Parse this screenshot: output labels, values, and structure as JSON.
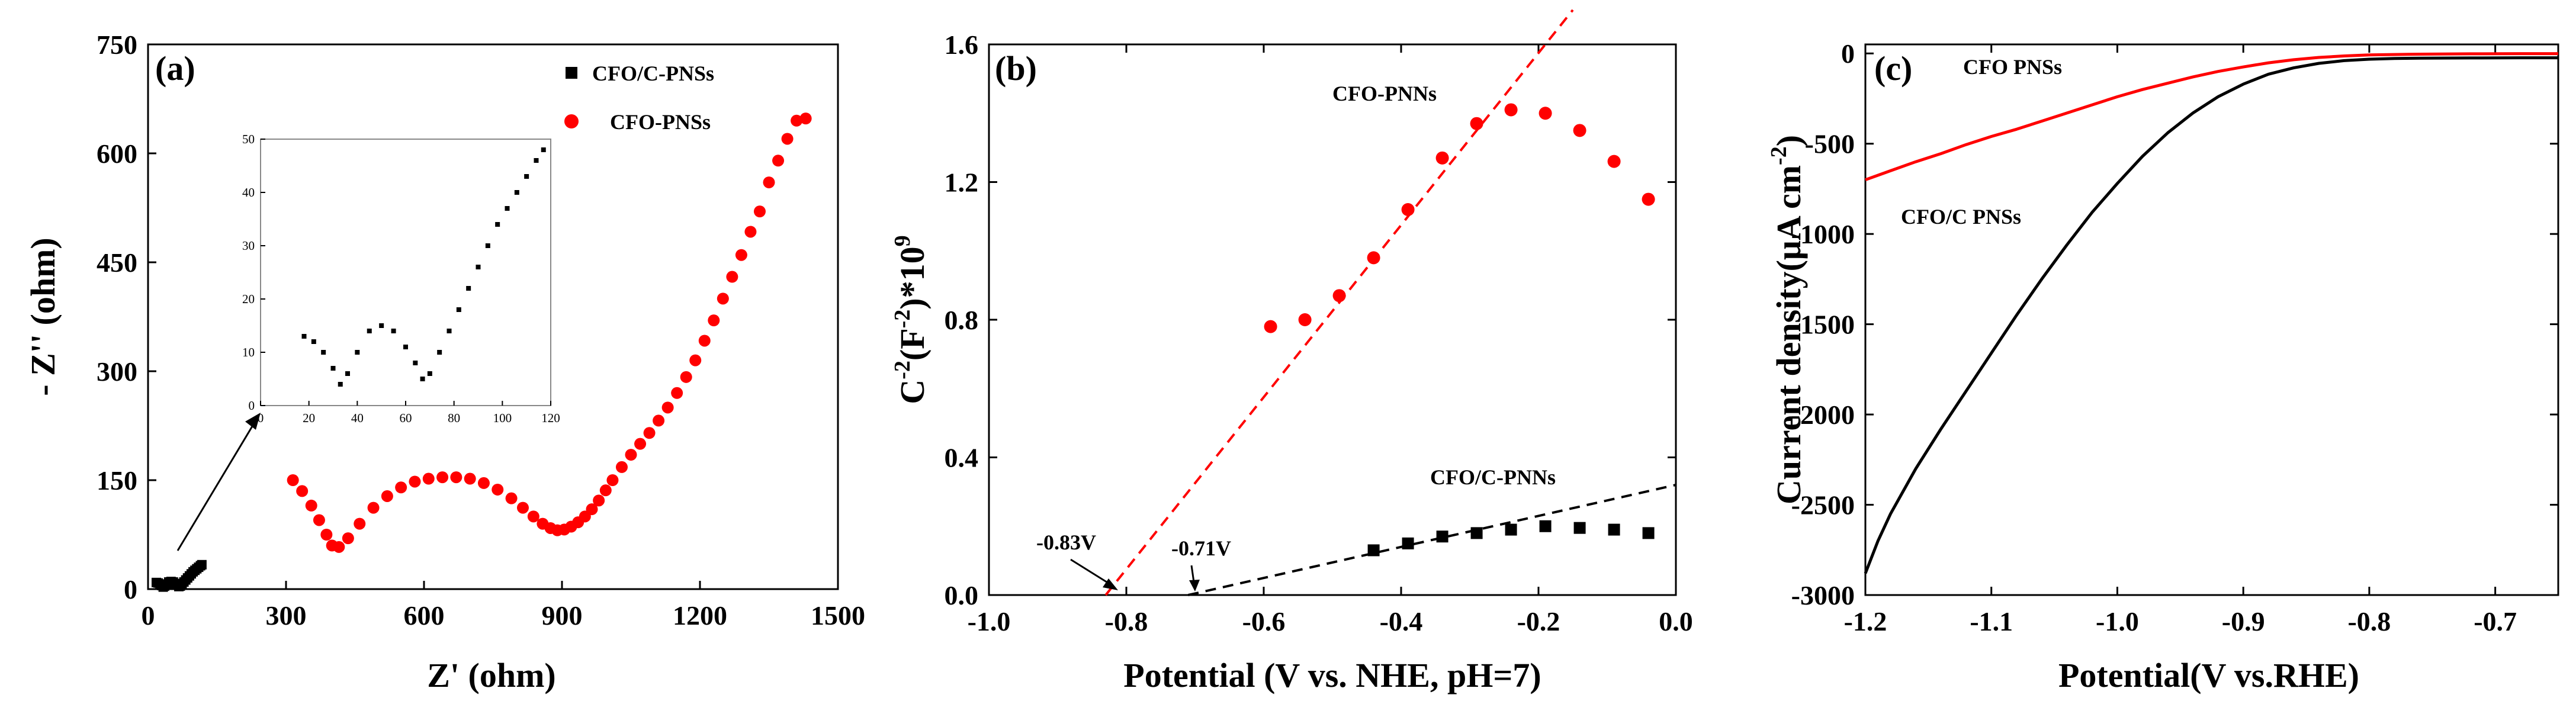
{
  "colors": {
    "red": "#ff0000",
    "black": "#000000"
  },
  "chart_data": [
    {
      "type": "scatter",
      "panel_label": "(a)",
      "xlabel": "Z' (ohm)",
      "ylabel": "- Z'' (ohm)",
      "xlim": [
        0,
        1500
      ],
      "ylim": [
        0,
        750
      ],
      "xticks": [
        0,
        300,
        600,
        900,
        1200,
        1500
      ],
      "yticks": [
        0,
        150,
        300,
        450,
        600,
        750
      ],
      "series": [
        {
          "name": "CFO/C-PNSs",
          "color": "#000000",
          "marker": "square",
          "x": [
            18,
            22,
            26,
            30,
            33,
            36,
            40,
            45,
            50,
            55,
            60,
            64,
            67,
            70,
            74,
            78,
            82,
            86,
            90,
            94,
            98,
            102,
            106,
            110,
            114,
            117
          ],
          "y": [
            13,
            12,
            10,
            7,
            4,
            6,
            10,
            14,
            15,
            14,
            11,
            8,
            5,
            6,
            10,
            14,
            18,
            22,
            26,
            30,
            34,
            37,
            40,
            43,
            46,
            48
          ]
        },
        {
          "name": "CFO-PNSs",
          "color": "#ff0000",
          "marker": "circle",
          "x": [
            315,
            335,
            355,
            372,
            388,
            400,
            415,
            435,
            460,
            490,
            520,
            550,
            580,
            610,
            640,
            670,
            700,
            730,
            760,
            790,
            815,
            838,
            858,
            875,
            890,
            905,
            920,
            935,
            950,
            965,
            980,
            995,
            1010,
            1030,
            1050,
            1070,
            1090,
            1110,
            1130,
            1150,
            1170,
            1190,
            1210,
            1230,
            1250,
            1270,
            1290,
            1310,
            1330,
            1350,
            1370,
            1390,
            1410,
            1430
          ],
          "y": [
            150,
            135,
            115,
            95,
            75,
            60,
            58,
            70,
            90,
            112,
            128,
            140,
            148,
            152,
            154,
            154,
            152,
            146,
            137,
            125,
            112,
            100,
            90,
            84,
            81,
            82,
            86,
            92,
            100,
            110,
            122,
            136,
            150,
            168,
            185,
            200,
            215,
            232,
            250,
            270,
            292,
            315,
            342,
            370,
            400,
            430,
            460,
            492,
            520,
            560,
            590,
            620,
            645,
            648
          ]
        }
      ],
      "legend": {
        "placement": "top-right",
        "entries": [
          "CFO/C-PNSs",
          "CFO-PNSs"
        ]
      },
      "inset": {
        "xlim": [
          0,
          120
        ],
        "ylim": [
          0,
          50
        ],
        "xticks": [
          0,
          20,
          40,
          60,
          80,
          100,
          120
        ],
        "yticks": [
          0,
          10,
          20,
          30,
          40,
          50
        ]
      }
    },
    {
      "type": "scatter",
      "panel_label": "(b)",
      "xlabel": "Potential (V vs. NHE, pH=7)",
      "ylabel_main": "C",
      "ylabel_sup1": "-2",
      "ylabel_mid": "(F",
      "ylabel_sup2": "-2",
      "ylabel_tail": ")*10",
      "ylabel_sup3": "9",
      "xlim": [
        -1.0,
        0.0
      ],
      "ylim": [
        0,
        1.6
      ],
      "xticks": [
        "-1.0",
        "-0.8",
        "-0.6",
        "-0.4",
        "-0.2",
        "0.0"
      ],
      "yticks": [
        "0.0",
        "0.4",
        "0.8",
        "1.2",
        "1.6"
      ],
      "series": [
        {
          "name": "CFO-PNNs",
          "color": "#ff0000",
          "marker": "circle",
          "x": [
            -0.59,
            -0.54,
            -0.49,
            -0.44,
            -0.39,
            -0.34,
            -0.29,
            -0.24,
            -0.19,
            -0.14,
            -0.09,
            -0.04
          ],
          "y": [
            0.78,
            0.8,
            0.87,
            0.98,
            1.12,
            1.27,
            1.37,
            1.41,
            1.4,
            1.35,
            1.26,
            1.15
          ]
        },
        {
          "name": "CFO/C-PNNs",
          "color": "#000000",
          "marker": "square",
          "x": [
            -0.44,
            -0.39,
            -0.34,
            -0.29,
            -0.24,
            -0.19,
            -0.14,
            -0.09,
            -0.04
          ],
          "y": [
            0.13,
            0.15,
            0.17,
            0.18,
            0.19,
            0.2,
            0.195,
            0.19,
            0.18
          ]
        }
      ],
      "fit_lines": [
        {
          "color": "#ff0000",
          "x": [
            -0.83,
            -0.15
          ],
          "y": [
            0.0,
            1.7
          ]
        },
        {
          "color": "#000000",
          "x": [
            -0.71,
            0.0
          ],
          "y": [
            0.0,
            0.32
          ]
        }
      ],
      "annotations": [
        "CFO-PNNs",
        "CFO/C-PNNs",
        "-0.83V",
        "-0.71V"
      ]
    },
    {
      "type": "line",
      "panel_label": "(c)",
      "xlabel": "Potential(V vs.RHE)",
      "ylabel_main": "Current density(μA cm",
      "ylabel_sup": "-2",
      "ylabel_tail": ")",
      "xlim": [
        -1.2,
        -0.65
      ],
      "ylim": [
        -3000,
        50
      ],
      "xticks": [
        "-1.2",
        "-1.1",
        "-1.0",
        "-0.9",
        "-0.8",
        "-0.7"
      ],
      "yticks": [
        "0",
        "-500",
        "-1000",
        "-1500",
        "-2000",
        "-2500",
        "-3000"
      ],
      "series": [
        {
          "name": "CFO PNSs",
          "color": "#ff0000",
          "x": [
            -1.2,
            -1.18,
            -1.16,
            -1.14,
            -1.12,
            -1.1,
            -1.08,
            -1.06,
            -1.04,
            -1.02,
            -1.0,
            -0.98,
            -0.96,
            -0.94,
            -0.92,
            -0.9,
            -0.88,
            -0.86,
            -0.84,
            -0.82,
            -0.8,
            -0.76,
            -0.72,
            -0.68,
            -0.65
          ],
          "y": [
            -700,
            -650,
            -600,
            -555,
            -505,
            -460,
            -420,
            -375,
            -330,
            -285,
            -240,
            -200,
            -165,
            -130,
            -100,
            -75,
            -52,
            -35,
            -22,
            -14,
            -8,
            -4,
            -2,
            -1,
            -1
          ]
        },
        {
          "name": "CFO/C PNSs",
          "color": "#000000",
          "x": [
            -1.2,
            -1.19,
            -1.18,
            -1.16,
            -1.14,
            -1.12,
            -1.1,
            -1.08,
            -1.06,
            -1.04,
            -1.02,
            -1.0,
            -0.98,
            -0.96,
            -0.94,
            -0.92,
            -0.9,
            -0.88,
            -0.86,
            -0.84,
            -0.82,
            -0.8,
            -0.78,
            -0.76,
            -0.72,
            -0.68,
            -0.65
          ],
          "y": [
            -2880,
            -2700,
            -2550,
            -2300,
            -2080,
            -1870,
            -1660,
            -1450,
            -1250,
            -1060,
            -880,
            -720,
            -570,
            -440,
            -330,
            -240,
            -170,
            -115,
            -80,
            -55,
            -40,
            -32,
            -28,
            -26,
            -25,
            -24,
            -24
          ]
        }
      ],
      "annotations": [
        "CFO PNSs",
        "CFO/C PNSs"
      ]
    }
  ]
}
